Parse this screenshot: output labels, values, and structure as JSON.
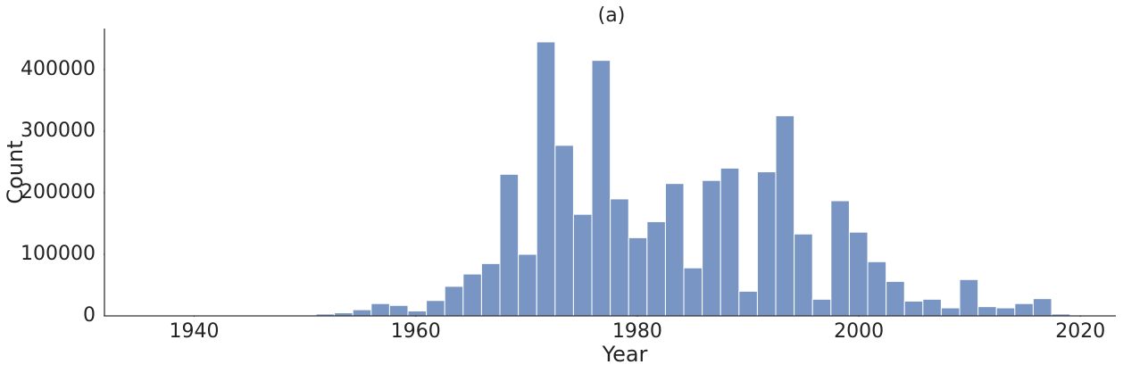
{
  "chart_data": {
    "type": "histogram",
    "title": "(a)",
    "x_label": "Year",
    "y_label": "Count",
    "bins": [
      1951.0,
      1952.66,
      1954.32,
      1955.98,
      1957.64,
      1959.3,
      1960.96,
      1962.62,
      1964.28,
      1965.94,
      1967.6,
      1969.26,
      1970.92,
      1972.58,
      1974.24,
      1975.9,
      1977.56,
      1979.22,
      1980.88,
      1982.54,
      1984.2,
      1985.86,
      1987.52,
      1989.18,
      1990.84,
      1992.5,
      1994.16,
      1995.82,
      1997.48,
      1999.14,
      2000.8,
      2002.46,
      2004.12,
      2005.78,
      2007.44,
      2009.1,
      2010.76,
      2012.42,
      2014.08,
      2015.74,
      2017.4,
      2019.06
    ],
    "values": [
      3000,
      5000,
      10000,
      20000,
      17000,
      8000,
      25000,
      48000,
      68000,
      85000,
      230000,
      100000,
      445000,
      277000,
      165000,
      415000,
      190000,
      127000,
      153000,
      215000,
      78000,
      220000,
      240000,
      40000,
      234000,
      325000,
      133000,
      27000,
      187000,
      136000,
      88000,
      56000,
      24000,
      27000,
      13000,
      59000,
      15000,
      13000,
      20000,
      28000,
      3000
    ],
    "color": "#7895c4",
    "xlim": [
      1931.9,
      2023.2
    ],
    "xticks": [
      1940,
      1960,
      1980,
      2000,
      2020
    ],
    "ylim": [
      0,
      466700
    ],
    "yticks": [
      0,
      100000,
      200000,
      300000,
      400000
    ],
    "grid": false
  }
}
